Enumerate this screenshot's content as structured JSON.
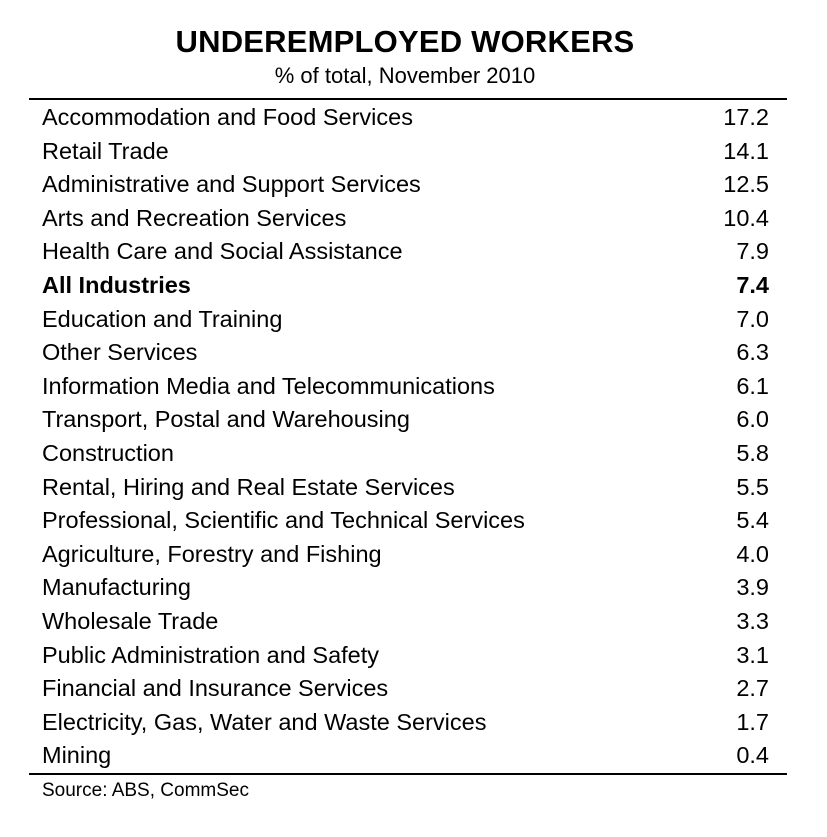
{
  "chart_data": {
    "type": "table",
    "title": "UNDEREMPLOYED WORKERS",
    "subtitle": "% of total, November 2010",
    "rows": [
      {
        "label": "Accommodation and Food Services",
        "value": "17.2",
        "bold": false
      },
      {
        "label": "Retail Trade",
        "value": "14.1",
        "bold": false
      },
      {
        "label": "Administrative and Support Services",
        "value": "12.5",
        "bold": false
      },
      {
        "label": "Arts and Recreation Services",
        "value": "10.4",
        "bold": false
      },
      {
        "label": "Health Care and Social Assistance",
        "value": "7.9",
        "bold": false
      },
      {
        "label": "All Industries",
        "value": "7.4",
        "bold": true
      },
      {
        "label": "Education and Training",
        "value": "7.0",
        "bold": false
      },
      {
        "label": "Other Services",
        "value": "6.3",
        "bold": false
      },
      {
        "label": "Information Media and Telecommunications",
        "value": "6.1",
        "bold": false
      },
      {
        "label": "Transport, Postal and Warehousing",
        "value": "6.0",
        "bold": false
      },
      {
        "label": "Construction",
        "value": "5.8",
        "bold": false
      },
      {
        "label": "Rental, Hiring and Real Estate Services",
        "value": "5.5",
        "bold": false
      },
      {
        "label": "Professional, Scientific and Technical Services",
        "value": "5.4",
        "bold": false
      },
      {
        "label": "Agriculture, Forestry and Fishing",
        "value": "4.0",
        "bold": false
      },
      {
        "label": "Manufacturing",
        "value": "3.9",
        "bold": false
      },
      {
        "label": "Wholesale Trade",
        "value": "3.3",
        "bold": false
      },
      {
        "label": "Public Administration and Safety",
        "value": "3.1",
        "bold": false
      },
      {
        "label": "Financial and Insurance Services",
        "value": "2.7",
        "bold": false
      },
      {
        "label": "Electricity, Gas, Water and Waste Services",
        "value": "1.7",
        "bold": false
      },
      {
        "label": "Mining",
        "value": "0.4",
        "bold": false
      }
    ],
    "source": "Source: ABS, CommSec"
  }
}
